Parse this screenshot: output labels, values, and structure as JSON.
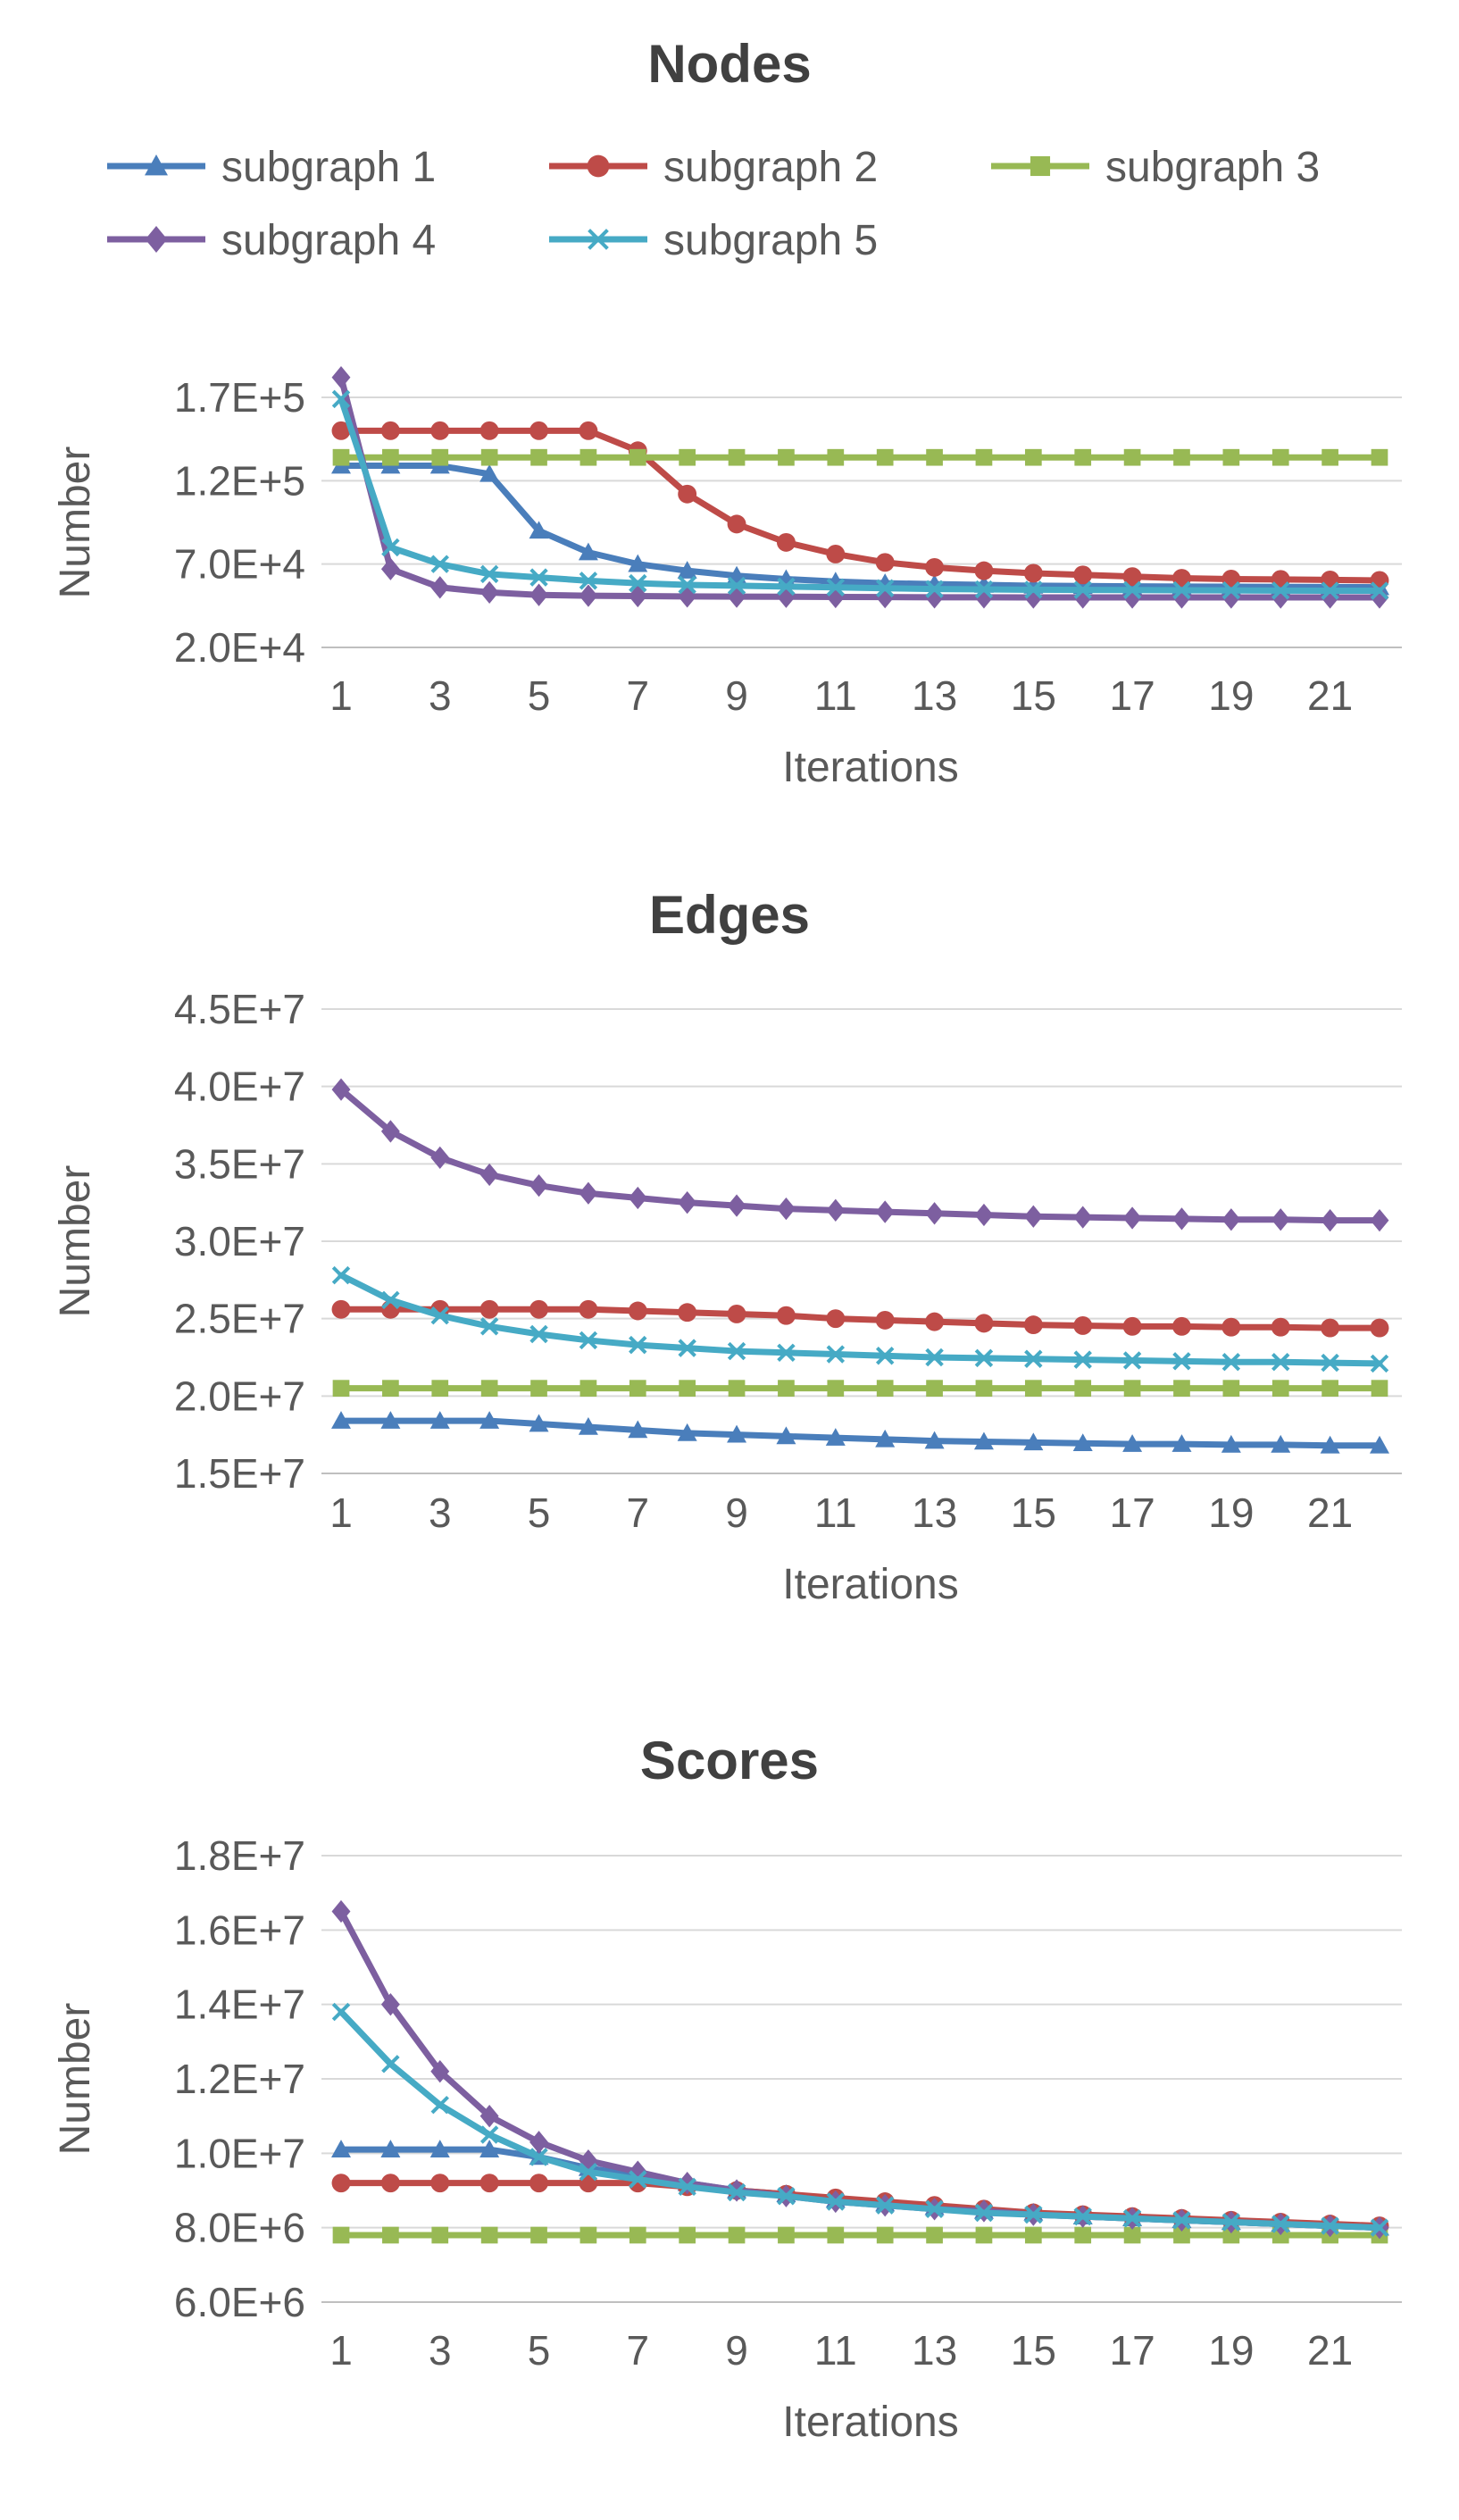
{
  "legend": {
    "placement": "top",
    "entries": [
      {
        "name": "subgraph 1",
        "color": "#4a7ebb",
        "marker": "triangle"
      },
      {
        "name": "subgraph 2",
        "color": "#be4b48",
        "marker": "circle"
      },
      {
        "name": "subgraph 3",
        "color": "#98b954",
        "marker": "square"
      },
      {
        "name": "subgraph 4",
        "color": "#7d5fa0",
        "marker": "diamond"
      },
      {
        "name": "subgraph 5",
        "color": "#46aac5",
        "marker": "x"
      }
    ]
  },
  "chart_data": [
    {
      "type": "line",
      "title": "Nodes",
      "xlabel": "Iterations",
      "ylabel": "Number",
      "grid": true,
      "x": [
        1,
        2,
        3,
        4,
        5,
        6,
        7,
        8,
        9,
        10,
        11,
        12,
        13,
        14,
        15,
        16,
        17,
        18,
        19,
        20,
        21,
        22
      ],
      "xticks": [
        1,
        3,
        5,
        7,
        9,
        11,
        13,
        15,
        17,
        19,
        21
      ],
      "yticks": [
        20000,
        70000,
        120000,
        170000
      ],
      "ytick_labels": [
        "2.0E+4",
        "7.0E+4",
        "1.2E+5",
        "1.7E+5"
      ],
      "ylim": [
        20000,
        170000
      ],
      "series": [
        {
          "name": "subgraph 1",
          "values": [
            129000,
            129000,
            129000,
            124000,
            90000,
            77000,
            70000,
            66000,
            63000,
            61000,
            59500,
            58500,
            58000,
            57500,
            57000,
            56800,
            56600,
            56500,
            56400,
            56300,
            56200,
            56100
          ]
        },
        {
          "name": "subgraph 2",
          "values": [
            150000,
            150000,
            150000,
            150000,
            150000,
            150000,
            138000,
            112000,
            94000,
            83000,
            76000,
            71000,
            68000,
            66000,
            64500,
            63500,
            62500,
            61500,
            61000,
            60800,
            60500,
            60200
          ]
        },
        {
          "name": "subgraph 3",
          "values": [
            134000,
            134000,
            134000,
            134000,
            134000,
            134000,
            134000,
            134000,
            134000,
            134000,
            134000,
            134000,
            134000,
            134000,
            134000,
            134000,
            134000,
            134000,
            134000,
            134000,
            134000,
            134000
          ]
        },
        {
          "name": "subgraph 4",
          "values": [
            182000,
            67000,
            56000,
            53000,
            51500,
            51000,
            50800,
            50600,
            50500,
            50400,
            50300,
            50200,
            50100,
            50100,
            50000,
            50000,
            50000,
            50000,
            50000,
            50000,
            50000,
            50000
          ]
        },
        {
          "name": "subgraph 5",
          "values": [
            169000,
            80000,
            70000,
            64000,
            62000,
            60000,
            58500,
            57500,
            57000,
            56500,
            56000,
            55500,
            55000,
            54800,
            54600,
            54500,
            54400,
            54300,
            54200,
            54100,
            54000,
            54000
          ]
        }
      ]
    },
    {
      "type": "line",
      "title": "Edges",
      "xlabel": "Iterations",
      "ylabel": "Number",
      "grid": true,
      "x": [
        1,
        2,
        3,
        4,
        5,
        6,
        7,
        8,
        9,
        10,
        11,
        12,
        13,
        14,
        15,
        16,
        17,
        18,
        19,
        20,
        21,
        22
      ],
      "xticks": [
        1,
        3,
        5,
        7,
        9,
        11,
        13,
        15,
        17,
        19,
        21
      ],
      "yticks": [
        15000000,
        20000000,
        25000000,
        30000000,
        35000000,
        40000000,
        45000000
      ],
      "ytick_labels": [
        "1.5E+7",
        "2.0E+7",
        "2.5E+7",
        "3.0E+7",
        "3.5E+7",
        "4.0E+7",
        "4.5E+7"
      ],
      "ylim": [
        15000000,
        45000000
      ],
      "series": [
        {
          "name": "subgraph 1",
          "values": [
            18400000,
            18400000,
            18400000,
            18400000,
            18200000,
            18000000,
            17800000,
            17600000,
            17500000,
            17400000,
            17300000,
            17200000,
            17100000,
            17050000,
            17000000,
            16950000,
            16900000,
            16900000,
            16850000,
            16850000,
            16800000,
            16800000
          ]
        },
        {
          "name": "subgraph 2",
          "values": [
            25600000,
            25600000,
            25600000,
            25600000,
            25600000,
            25600000,
            25500000,
            25400000,
            25300000,
            25200000,
            25000000,
            24900000,
            24800000,
            24700000,
            24600000,
            24550000,
            24500000,
            24500000,
            24450000,
            24450000,
            24400000,
            24400000
          ]
        },
        {
          "name": "subgraph 3",
          "values": [
            20500000,
            20500000,
            20500000,
            20500000,
            20500000,
            20500000,
            20500000,
            20500000,
            20500000,
            20500000,
            20500000,
            20500000,
            20500000,
            20500000,
            20500000,
            20500000,
            20500000,
            20500000,
            20500000,
            20500000,
            20500000,
            20500000
          ]
        },
        {
          "name": "subgraph 4",
          "values": [
            39800000,
            37100000,
            35400000,
            34300000,
            33600000,
            33100000,
            32800000,
            32500000,
            32300000,
            32100000,
            32000000,
            31900000,
            31800000,
            31700000,
            31600000,
            31550000,
            31500000,
            31450000,
            31400000,
            31400000,
            31350000,
            31350000
          ]
        },
        {
          "name": "subgraph 5",
          "values": [
            27800000,
            26200000,
            25200000,
            24500000,
            24000000,
            23600000,
            23300000,
            23100000,
            22900000,
            22800000,
            22700000,
            22600000,
            22500000,
            22450000,
            22400000,
            22350000,
            22300000,
            22250000,
            22200000,
            22200000,
            22150000,
            22100000
          ]
        }
      ]
    },
    {
      "type": "line",
      "title": "Scores",
      "xlabel": "Iterations",
      "ylabel": "Number",
      "grid": true,
      "x": [
        1,
        2,
        3,
        4,
        5,
        6,
        7,
        8,
        9,
        10,
        11,
        12,
        13,
        14,
        15,
        16,
        17,
        18,
        19,
        20,
        21,
        22
      ],
      "xticks": [
        1,
        3,
        5,
        7,
        9,
        11,
        13,
        15,
        17,
        19,
        21
      ],
      "yticks": [
        6000000,
        8000000,
        10000000,
        12000000,
        14000000,
        16000000,
        18000000
      ],
      "ytick_labels": [
        "6.0E+6",
        "8.0E+6",
        "1.0E+7",
        "1.2E+7",
        "1.4E+7",
        "1.6E+7",
        "1.8E+7"
      ],
      "ylim": [
        6000000,
        18000000
      ],
      "series": [
        {
          "name": "subgraph 1",
          "values": [
            10100000,
            10100000,
            10100000,
            10100000,
            9900000,
            9600000,
            9400000,
            9200000,
            9000000,
            8900000,
            8750000,
            8650000,
            8550000,
            8450000,
            8400000,
            8300000,
            8250000,
            8200000,
            8150000,
            8100000,
            8050000,
            8000000
          ]
        },
        {
          "name": "subgraph 2",
          "values": [
            9200000,
            9200000,
            9200000,
            9200000,
            9200000,
            9200000,
            9200000,
            9100000,
            9000000,
            8900000,
            8800000,
            8700000,
            8600000,
            8500000,
            8400000,
            8350000,
            8300000,
            8250000,
            8200000,
            8150000,
            8100000,
            8050000
          ]
        },
        {
          "name": "subgraph 3",
          "values": [
            7800000,
            7800000,
            7800000,
            7800000,
            7800000,
            7800000,
            7800000,
            7800000,
            7800000,
            7800000,
            7800000,
            7800000,
            7800000,
            7800000,
            7800000,
            7800000,
            7800000,
            7800000,
            7800000,
            7800000,
            7800000,
            7800000
          ]
        },
        {
          "name": "subgraph 4",
          "values": [
            16500000,
            14000000,
            12200000,
            11000000,
            10300000,
            9800000,
            9500000,
            9200000,
            9000000,
            8850000,
            8700000,
            8600000,
            8500000,
            8450000,
            8350000,
            8300000,
            8250000,
            8200000,
            8150000,
            8100000,
            8050000,
            8000000
          ]
        },
        {
          "name": "subgraph 5",
          "values": [
            13800000,
            12400000,
            11300000,
            10500000,
            9900000,
            9500000,
            9300000,
            9100000,
            8950000,
            8850000,
            8700000,
            8600000,
            8500000,
            8400000,
            8350000,
            8300000,
            8250000,
            8200000,
            8150000,
            8100000,
            8050000,
            8000000
          ]
        }
      ]
    }
  ]
}
